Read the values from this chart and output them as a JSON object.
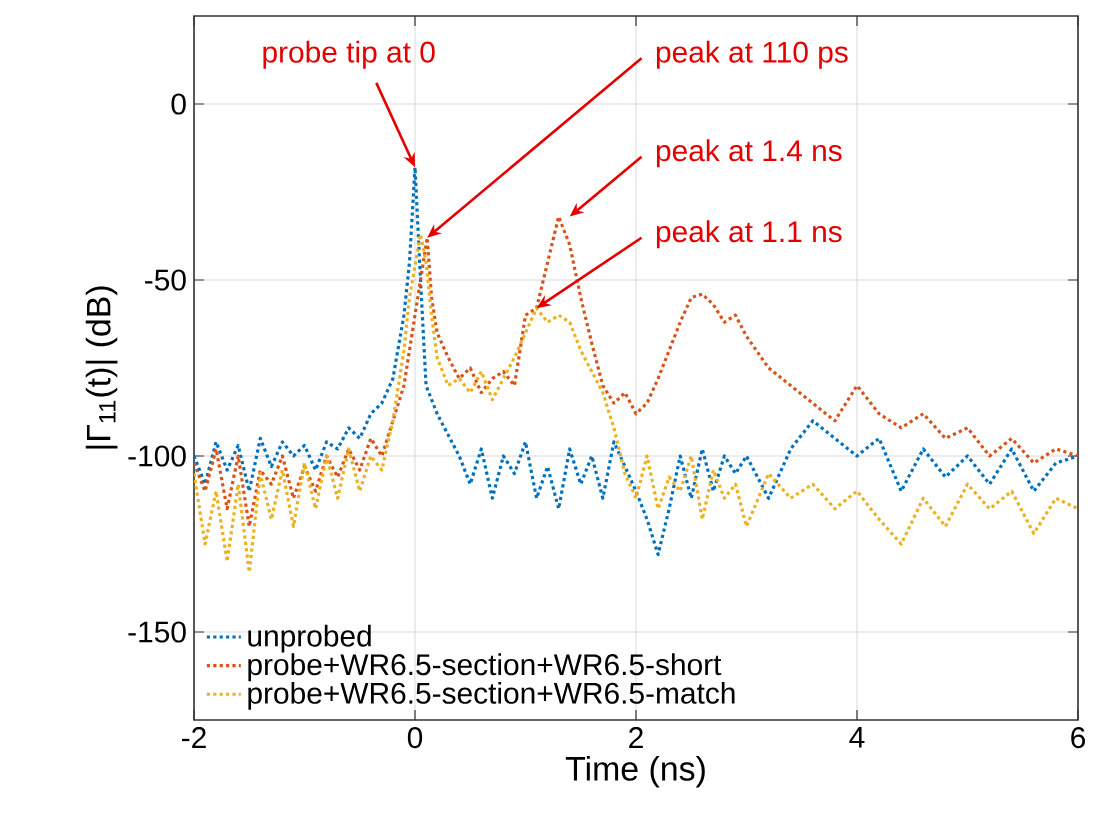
{
  "chart_data": {
    "type": "line",
    "xlabel": "Time (ns)",
    "ylabel": "|Γ$_{11}$(t)| (dB)",
    "xlim": [
      -2,
      6
    ],
    "ylim": [
      -175,
      25
    ],
    "xticks": [
      -2,
      0,
      2,
      4,
      6
    ],
    "yticks": [
      -150,
      -100,
      -50,
      0
    ],
    "grid": true,
    "legend": "bottom left",
    "line_style": "dotted",
    "annotations": [
      {
        "text": "probe tip at 0",
        "x": 0,
        "y": -18
      },
      {
        "text": "peak at 110 ps",
        "x": 0.11,
        "y": -38
      },
      {
        "text": "peak at 1.4 ns",
        "x": 1.4,
        "y": -32
      },
      {
        "text": "peak at 1.1 ns",
        "x": 1.1,
        "y": -58
      }
    ],
    "series": [
      {
        "name": "unprobed",
        "color": "#0072bd",
        "x": [
          -2,
          -1.9,
          -1.8,
          -1.7,
          -1.6,
          -1.5,
          -1.4,
          -1.3,
          -1.2,
          -1.1,
          -1.0,
          -0.9,
          -0.8,
          -0.7,
          -0.6,
          -0.5,
          -0.4,
          -0.3,
          -0.2,
          -0.1,
          -0.05,
          0,
          0.05,
          0.1,
          0.2,
          0.3,
          0.4,
          0.5,
          0.6,
          0.7,
          0.8,
          0.9,
          1.0,
          1.1,
          1.2,
          1.3,
          1.4,
          1.5,
          1.6,
          1.7,
          1.8,
          1.9,
          2.0,
          2.1,
          2.2,
          2.3,
          2.4,
          2.5,
          2.6,
          2.7,
          2.8,
          2.9,
          3.0,
          3.2,
          3.4,
          3.6,
          3.8,
          4.0,
          4.2,
          4.4,
          4.6,
          4.8,
          5.0,
          5.2,
          5.4,
          5.6,
          5.8,
          6.0
        ],
        "values": [
          -100,
          -108,
          -96,
          -104,
          -97,
          -110,
          -95,
          -103,
          -96,
          -100,
          -97,
          -104,
          -96,
          -98,
          -92,
          -95,
          -88,
          -85,
          -78,
          -60,
          -45,
          -18,
          -50,
          -80,
          -88,
          -94,
          -100,
          -108,
          -98,
          -112,
          -100,
          -105,
          -96,
          -112,
          -103,
          -115,
          -98,
          -108,
          -100,
          -112,
          -96,
          -103,
          -110,
          -118,
          -128,
          -115,
          -100,
          -112,
          -98,
          -110,
          -100,
          -105,
          -100,
          -112,
          -98,
          -90,
          -95,
          -100,
          -95,
          -110,
          -98,
          -106,
          -100,
          -108,
          -98,
          -110,
          -102,
          -100
        ]
      },
      {
        "name": "probe+WR6.5-section+WR6.5-short",
        "color": "#d95319",
        "x": [
          -2,
          -1.9,
          -1.8,
          -1.7,
          -1.6,
          -1.5,
          -1.4,
          -1.3,
          -1.2,
          -1.1,
          -1.0,
          -0.9,
          -0.8,
          -0.7,
          -0.6,
          -0.5,
          -0.4,
          -0.3,
          -0.2,
          -0.1,
          -0.05,
          0.05,
          0.11,
          0.15,
          0.2,
          0.3,
          0.4,
          0.5,
          0.6,
          0.7,
          0.8,
          0.9,
          1.0,
          1.1,
          1.2,
          1.3,
          1.4,
          1.5,
          1.6,
          1.7,
          1.8,
          1.9,
          2.0,
          2.1,
          2.2,
          2.3,
          2.4,
          2.5,
          2.6,
          2.7,
          2.8,
          2.9,
          3.0,
          3.2,
          3.4,
          3.6,
          3.8,
          4.0,
          4.2,
          4.4,
          4.6,
          4.8,
          5.0,
          5.2,
          5.4,
          5.6,
          5.8,
          6.0
        ],
        "values": [
          -102,
          -110,
          -98,
          -115,
          -100,
          -120,
          -104,
          -108,
          -100,
          -112,
          -103,
          -110,
          -100,
          -106,
          -98,
          -104,
          -95,
          -100,
          -90,
          -80,
          -70,
          -50,
          -38,
          -55,
          -65,
          -72,
          -78,
          -75,
          -82,
          -78,
          -76,
          -80,
          -60,
          -58,
          -45,
          -32,
          -40,
          -55,
          -68,
          -80,
          -85,
          -82,
          -88,
          -85,
          -78,
          -70,
          -62,
          -55,
          -54,
          -57,
          -62,
          -60,
          -66,
          -75,
          -80,
          -85,
          -90,
          -80,
          -88,
          -92,
          -88,
          -95,
          -92,
          -100,
          -95,
          -102,
          -98,
          -100
        ]
      },
      {
        "name": "probe+WR6.5-section+WR6.5-match",
        "color": "#edb120",
        "x": [
          -2,
          -1.9,
          -1.8,
          -1.7,
          -1.6,
          -1.5,
          -1.4,
          -1.3,
          -1.2,
          -1.1,
          -1.0,
          -0.9,
          -0.8,
          -0.7,
          -0.6,
          -0.5,
          -0.4,
          -0.3,
          -0.2,
          -0.1,
          -0.05,
          0.05,
          0.1,
          0.15,
          0.2,
          0.3,
          0.4,
          0.5,
          0.6,
          0.7,
          0.8,
          0.9,
          1.0,
          1.1,
          1.2,
          1.3,
          1.4,
          1.5,
          1.6,
          1.7,
          1.8,
          1.9,
          2.0,
          2.1,
          2.2,
          2.3,
          2.4,
          2.5,
          2.6,
          2.7,
          2.8,
          2.9,
          3.0,
          3.2,
          3.4,
          3.6,
          3.8,
          4.0,
          4.2,
          4.4,
          4.6,
          4.8,
          5.0,
          5.2,
          5.4,
          5.6,
          5.8,
          6.0
        ],
        "values": [
          -105,
          -125,
          -110,
          -130,
          -108,
          -133,
          -105,
          -118,
          -104,
          -120,
          -102,
          -115,
          -100,
          -112,
          -98,
          -110,
          -100,
          -104,
          -90,
          -70,
          -55,
          -37,
          -45,
          -60,
          -72,
          -80,
          -78,
          -82,
          -76,
          -84,
          -78,
          -72,
          -65,
          -58,
          -62,
          -60,
          -62,
          -70,
          -76,
          -82,
          -92,
          -105,
          -112,
          -100,
          -115,
          -106,
          -110,
          -100,
          -118,
          -104,
          -112,
          -108,
          -120,
          -105,
          -112,
          -108,
          -115,
          -110,
          -118,
          -125,
          -112,
          -120,
          -108,
          -115,
          -110,
          -122,
          -112,
          -115
        ]
      }
    ]
  }
}
